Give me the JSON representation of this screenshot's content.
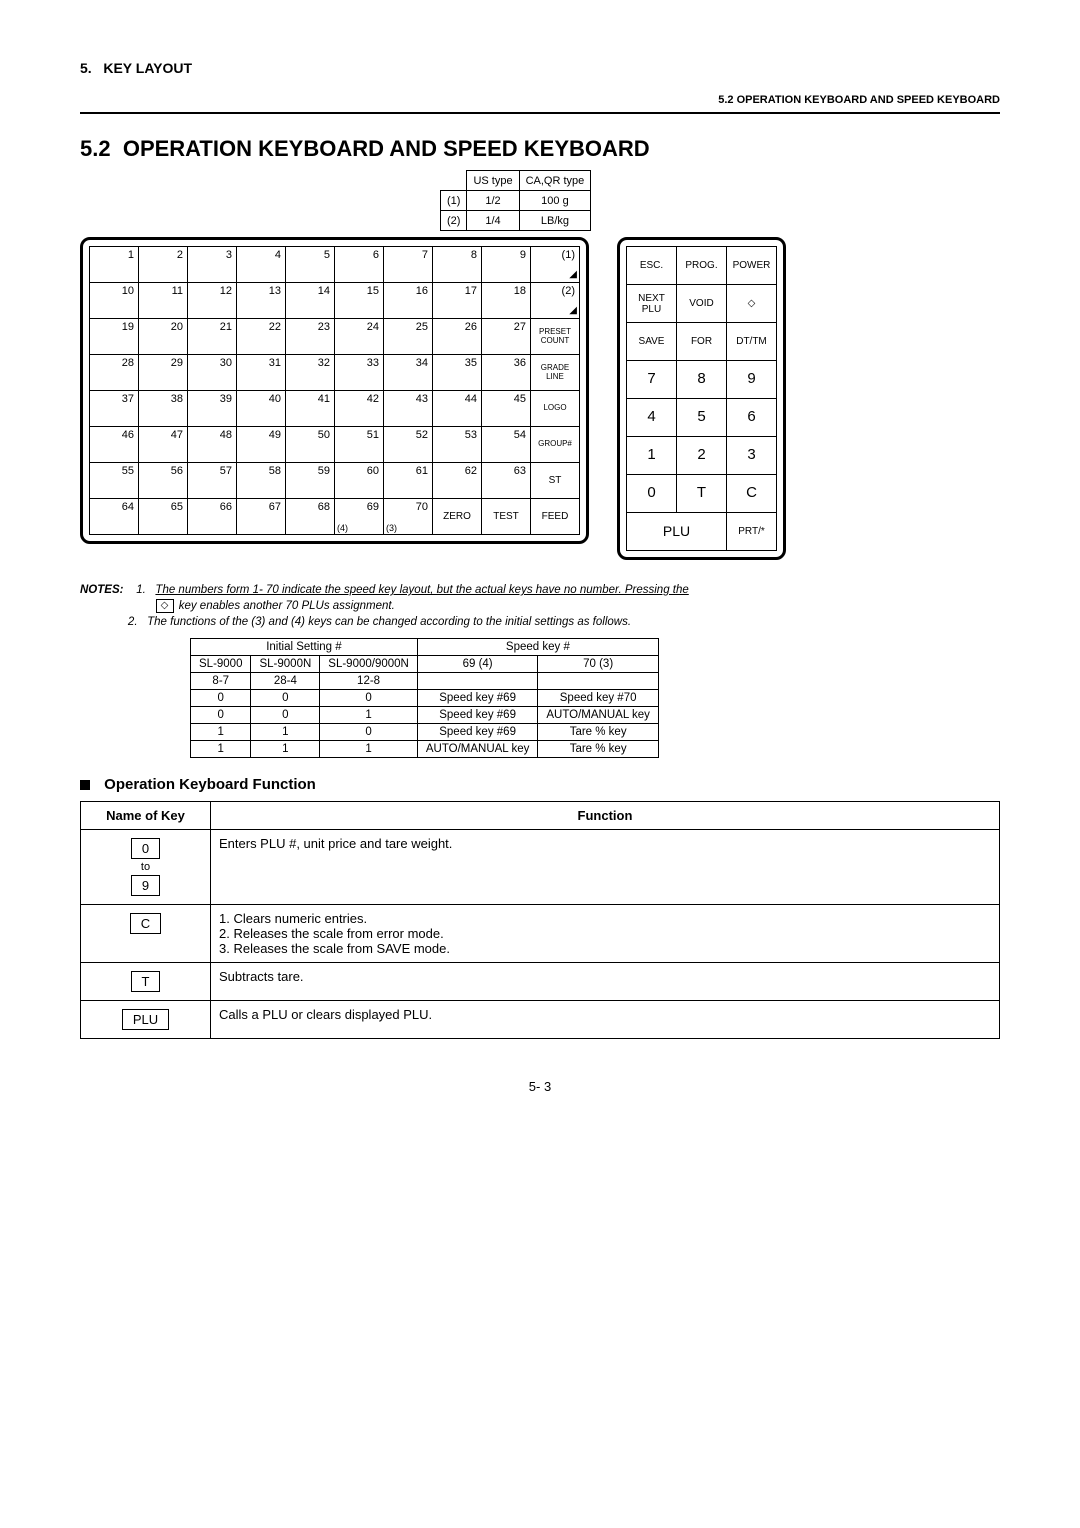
{
  "header": {
    "chapter": "5.",
    "chapter_title": "KEY LAYOUT",
    "subsection_ref": "5.2 OPERATION KEYBOARD AND SPEED KEYBOARD"
  },
  "section": {
    "number": "5.2",
    "title": "OPERATION KEYBOARD AND SPEED KEYBOARD"
  },
  "type_table": {
    "headers": [
      "",
      "US type",
      "CA,QR type"
    ],
    "rows": [
      [
        "(1)",
        "1/2",
        "100 g"
      ],
      [
        "(2)",
        "1/4",
        "LB/kg"
      ]
    ]
  },
  "speed_keyboard": {
    "rows": [
      [
        "1",
        "2",
        "3",
        "4",
        "5",
        "6",
        "7",
        "8",
        "9",
        {
          "t": "(1)",
          "tri": true
        }
      ],
      [
        "10",
        "11",
        "12",
        "13",
        "14",
        "15",
        "16",
        "17",
        "18",
        {
          "t": "(2)",
          "tri": true
        }
      ],
      [
        "19",
        "20",
        "21",
        "22",
        "23",
        "24",
        "25",
        "26",
        "27",
        {
          "fn": "PRESET COUNT"
        }
      ],
      [
        "28",
        "29",
        "30",
        "31",
        "32",
        "33",
        "34",
        "35",
        "36",
        {
          "fn": "GRADE LINE"
        }
      ],
      [
        "37",
        "38",
        "39",
        "40",
        "41",
        "42",
        "43",
        "44",
        "45",
        {
          "fn": "LOGO"
        }
      ],
      [
        "46",
        "47",
        "48",
        "49",
        "50",
        "51",
        "52",
        "53",
        "54",
        {
          "fn": "GROUP#"
        }
      ],
      [
        "55",
        "56",
        "57",
        "58",
        "59",
        "60",
        "61",
        "62",
        "63",
        {
          "fnm": "ST"
        }
      ],
      [
        "64",
        "65",
        "66",
        "67",
        "68",
        {
          "t": "69",
          "sub": "(4)"
        },
        {
          "t": "70",
          "sub": "(3)"
        },
        {
          "fnm": "ZERO"
        },
        {
          "fnm": "TEST"
        },
        {
          "fnm": "FEED"
        }
      ]
    ]
  },
  "operation_keyboard": {
    "rows": [
      [
        "ESC.",
        "PROG.",
        "POWER"
      ],
      [
        "NEXT PLU",
        "VOID",
        "◇"
      ],
      [
        "SAVE",
        "FOR",
        "DT/TM"
      ],
      [
        {
          "big": "7"
        },
        {
          "big": "8"
        },
        {
          "big": "9"
        }
      ],
      [
        {
          "big": "4"
        },
        {
          "big": "5"
        },
        {
          "big": "6"
        }
      ],
      [
        {
          "big": "1"
        },
        {
          "big": "2"
        },
        {
          "big": "3"
        }
      ],
      [
        {
          "big": "0"
        },
        {
          "big": "T"
        },
        {
          "big": "C"
        }
      ],
      [
        {
          "plu": "PLU",
          "span": 2
        },
        "PRT/*"
      ]
    ]
  },
  "notes": {
    "label": "NOTES:",
    "items": [
      "The numbers form 1- 70 indicate the speed key layout, but the actual keys have no number.   Pressing the",
      "key enables another 70 PLUs assignment.",
      "The functions of the (3) and (4) keys can be changed according to the initial settings as follows."
    ],
    "diamond": "◇"
  },
  "settings_table": {
    "header1": "Initial Setting #",
    "header2": "Speed key #",
    "subheaders": [
      "SL-9000",
      "SL-9000N",
      "SL-9000/9000N",
      "69 (4)",
      "70 (3)"
    ],
    "rows": [
      [
        "8-7",
        "28-4",
        "12-8",
        "",
        ""
      ],
      [
        "0",
        "0",
        "0",
        "Speed key #69",
        "Speed key #70"
      ],
      [
        "0",
        "0",
        "1",
        "Speed key #69",
        "AUTO/MANUAL key"
      ],
      [
        "1",
        "1",
        "0",
        "Speed key #69",
        "Tare % key"
      ],
      [
        "1",
        "1",
        "1",
        "AUTO/MANUAL key",
        "Tare % key"
      ]
    ]
  },
  "subsection": "Operation Keyboard Function",
  "func_table": {
    "headers": [
      "Name of Key",
      "Function"
    ],
    "rows": [
      {
        "keys": [
          "0",
          "9"
        ],
        "between": "to",
        "text": "Enters PLU #, unit price and tare weight."
      },
      {
        "keys": [
          "C"
        ],
        "text": "1. Clears numeric entries.\n2. Releases the scale from error mode.\n3. Releases the scale from SAVE mode."
      },
      {
        "keys": [
          "T"
        ],
        "text": "Subtracts tare."
      },
      {
        "keys": [
          "PLU"
        ],
        "text": "Calls a PLU or clears displayed PLU."
      }
    ]
  },
  "page_number": "5- 3"
}
